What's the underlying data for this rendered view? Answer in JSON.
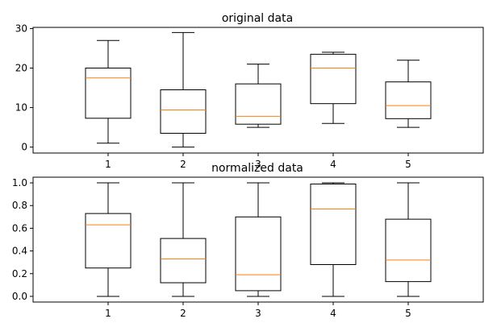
{
  "chart_data": [
    {
      "type": "box",
      "title": "original data",
      "categories": [
        "1",
        "2",
        "3",
        "4",
        "5"
      ],
      "boxes": [
        {
          "whislo": 1,
          "q1": 7.3,
          "med": 17.5,
          "q3": 20,
          "whishi": 27
        },
        {
          "whislo": 0,
          "q1": 3.5,
          "med": 9.4,
          "q3": 14.5,
          "whishi": 29
        },
        {
          "whislo": 5,
          "q1": 5.8,
          "med": 7.8,
          "q3": 16,
          "whishi": 21
        },
        {
          "whislo": 6,
          "q1": 11,
          "med": 20,
          "q3": 23.5,
          "whishi": 24
        },
        {
          "whislo": 5,
          "q1": 7.2,
          "med": 10.5,
          "q3": 16.5,
          "whishi": 22
        }
      ],
      "ylim": [
        -1.5,
        30.3
      ],
      "yticks": [
        0,
        10,
        20,
        30
      ],
      "ytick_labels": [
        "0",
        "10",
        "20",
        "30"
      ],
      "xlabel": "",
      "ylabel": "",
      "grid": false
    },
    {
      "type": "box",
      "title": "normalized data",
      "categories": [
        "1",
        "2",
        "3",
        "4",
        "5"
      ],
      "boxes": [
        {
          "whislo": 0,
          "q1": 0.25,
          "med": 0.63,
          "q3": 0.73,
          "whishi": 1.0
        },
        {
          "whislo": 0,
          "q1": 0.12,
          "med": 0.33,
          "q3": 0.51,
          "whishi": 1.0
        },
        {
          "whislo": 0,
          "q1": 0.05,
          "med": 0.19,
          "q3": 0.7,
          "whishi": 1.0
        },
        {
          "whislo": 0,
          "q1": 0.28,
          "med": 0.77,
          "q3": 0.99,
          "whishi": 1.0
        },
        {
          "whislo": 0,
          "q1": 0.13,
          "med": 0.32,
          "q3": 0.68,
          "whishi": 1.0
        }
      ],
      "ylim": [
        -0.05,
        1.05
      ],
      "yticks": [
        0,
        0.2,
        0.4,
        0.6,
        0.8,
        1.0
      ],
      "ytick_labels": [
        "0.0",
        "0.2",
        "0.4",
        "0.6",
        "0.8",
        "1.0"
      ],
      "xlabel": "",
      "ylabel": "",
      "grid": false
    }
  ],
  "colors": {
    "box": "#000000",
    "median": "#ff7f0e",
    "whisker": "#000000",
    "axes": "#000000",
    "background": "#ffffff"
  }
}
